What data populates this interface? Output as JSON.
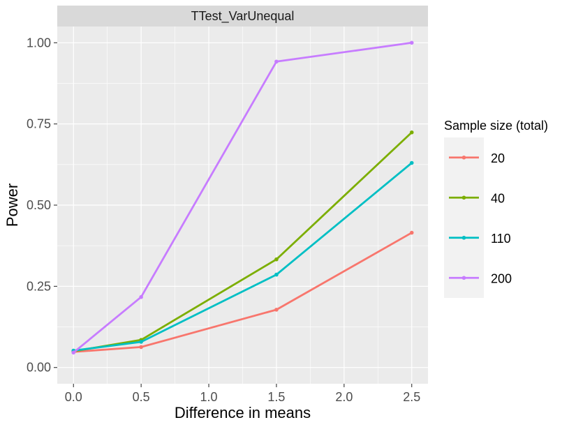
{
  "chart_data": {
    "type": "line",
    "facet_title": "TTest_VarUnequal",
    "xlabel": "Difference in means",
    "ylabel": "Power",
    "x": [
      0.0,
      0.5,
      1.5,
      2.5
    ],
    "xlim": [
      -0.12,
      2.62
    ],
    "ylim": [
      -0.05,
      1.05
    ],
    "x_ticks": [
      0.0,
      0.5,
      1.0,
      1.5,
      2.0,
      2.5
    ],
    "x_tick_labels": [
      "0.0",
      "0.5",
      "1.0",
      "1.5",
      "2.0",
      "2.5"
    ],
    "y_ticks": [
      0.0,
      0.25,
      0.5,
      0.75,
      1.0
    ],
    "y_tick_labels": [
      "0.00",
      "0.25",
      "0.50",
      "0.75",
      "1.00"
    ],
    "grid": true,
    "legend": {
      "title": "Sample size (total)",
      "placement": "right"
    },
    "series": [
      {
        "name": "20",
        "color": "#F8766D",
        "values": [
          0.048,
          0.063,
          0.178,
          0.415
        ]
      },
      {
        "name": "40",
        "color": "#7CAE00",
        "values": [
          0.05,
          0.085,
          0.333,
          0.724
        ]
      },
      {
        "name": "110",
        "color": "#00BFC4",
        "values": [
          0.052,
          0.079,
          0.286,
          0.63
        ]
      },
      {
        "name": "200",
        "color": "#C77CFF",
        "values": [
          0.046,
          0.217,
          0.942,
          1.0
        ]
      }
    ]
  }
}
